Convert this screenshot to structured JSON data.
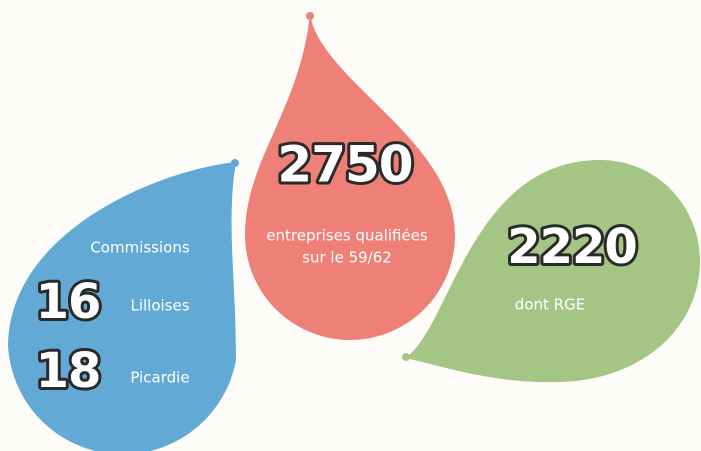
{
  "blue": {
    "heading": "Commissions",
    "items": [
      {
        "number": "16",
        "label": "Lilloises"
      },
      {
        "number": "18",
        "label": "Picardie"
      }
    ]
  },
  "red": {
    "number": "2750",
    "lines": [
      "entreprises qualifiées",
      "sur le 59/62"
    ]
  },
  "green": {
    "number": "2220",
    "label": "dont RGE"
  }
}
